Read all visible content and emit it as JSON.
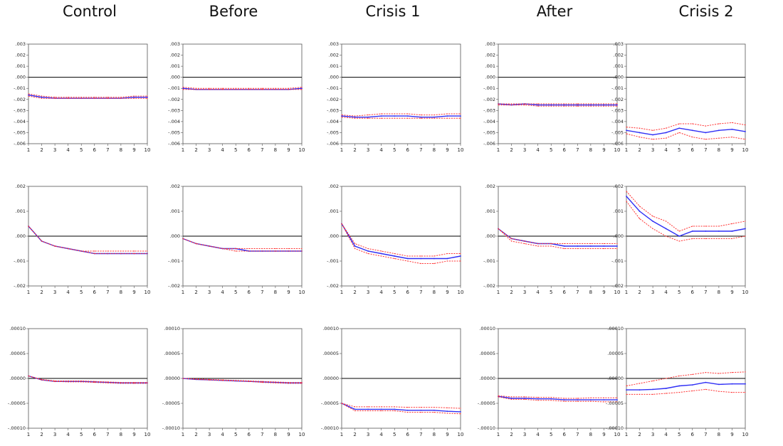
{
  "columns": [
    "Control",
    "Before",
    "Crisis 1",
    "After",
    "Crisis 2"
  ],
  "colors": {
    "response": "#2f2ff5",
    "band": "#ff3030",
    "axis": "#000000",
    "zero": "#000000"
  },
  "chart_data": [
    {
      "type": "line",
      "row": 0,
      "ylim": [
        -0.006,
        0.003
      ],
      "yticks": [
        ".003",
        ".002",
        ".001",
        ".000",
        "-.001",
        "-.002",
        "-.003",
        "-.004",
        "-.005",
        "-.006"
      ],
      "x": [
        1,
        2,
        3,
        4,
        5,
        6,
        7,
        8,
        9,
        10
      ],
      "panels": [
        {
          "col": "Control",
          "series": [
            {
              "role": "response",
              "values": [
                -0.0016,
                -0.0018,
                -0.0019,
                -0.0019,
                -0.0019,
                -0.0019,
                -0.0019,
                -0.0019,
                -0.0018,
                -0.0018
              ]
            },
            {
              "role": "upper",
              "values": [
                -0.0015,
                -0.0017,
                -0.0018,
                -0.0018,
                -0.0018,
                -0.0018,
                -0.0018,
                -0.0018,
                -0.0017,
                -0.0017
              ]
            },
            {
              "role": "lower",
              "values": [
                -0.0017,
                -0.0019,
                -0.0019,
                -0.0019,
                -0.0019,
                -0.0019,
                -0.0019,
                -0.0019,
                -0.0019,
                -0.0019
              ]
            }
          ]
        },
        {
          "col": "Before",
          "series": [
            {
              "role": "response",
              "values": [
                -0.001,
                -0.0011,
                -0.0011,
                -0.0011,
                -0.0011,
                -0.0011,
                -0.0011,
                -0.0011,
                -0.0011,
                -0.001
              ]
            },
            {
              "role": "upper",
              "values": [
                -0.0009,
                -0.001,
                -0.001,
                -0.001,
                -0.001,
                -0.001,
                -0.001,
                -0.001,
                -0.001,
                -0.0009
              ]
            },
            {
              "role": "lower",
              "values": [
                -0.0011,
                -0.0011,
                -0.0011,
                -0.0011,
                -0.0011,
                -0.0011,
                -0.0011,
                -0.0011,
                -0.0011,
                -0.0011
              ]
            }
          ]
        },
        {
          "col": "Crisis 1",
          "series": [
            {
              "role": "response",
              "values": [
                -0.0035,
                -0.0036,
                -0.0036,
                -0.0035,
                -0.0035,
                -0.0035,
                -0.0036,
                -0.0036,
                -0.0035,
                -0.0035
              ]
            },
            {
              "role": "upper",
              "values": [
                -0.0034,
                -0.0035,
                -0.0034,
                -0.0033,
                -0.0033,
                -0.0033,
                -0.0034,
                -0.0034,
                -0.0033,
                -0.0033
              ]
            },
            {
              "role": "lower",
              "values": [
                -0.0036,
                -0.0037,
                -0.0037,
                -0.0037,
                -0.0037,
                -0.0037,
                -0.0037,
                -0.0037,
                -0.0037,
                -0.0037
              ]
            }
          ]
        },
        {
          "col": "After",
          "series": [
            {
              "role": "response",
              "values": [
                -0.0024,
                -0.0025,
                -0.0024,
                -0.0025,
                -0.0025,
                -0.0025,
                -0.0025,
                -0.0025,
                -0.0025,
                -0.0025
              ]
            },
            {
              "role": "upper",
              "values": [
                -0.0024,
                -0.0024,
                -0.0024,
                -0.0024,
                -0.0024,
                -0.0024,
                -0.0024,
                -0.0024,
                -0.0024,
                -0.0024
              ]
            },
            {
              "role": "lower",
              "values": [
                -0.0025,
                -0.0025,
                -0.0025,
                -0.0026,
                -0.0026,
                -0.0026,
                -0.0026,
                -0.0026,
                -0.0026,
                -0.0026
              ]
            }
          ]
        },
        {
          "col": "Crisis 2",
          "series": [
            {
              "role": "response",
              "values": [
                -0.0048,
                -0.005,
                -0.0052,
                -0.005,
                -0.0046,
                -0.0048,
                -0.005,
                -0.0048,
                -0.0047,
                -0.0049
              ]
            },
            {
              "role": "upper",
              "values": [
                -0.0045,
                -0.0046,
                -0.0048,
                -0.0046,
                -0.0042,
                -0.0042,
                -0.0044,
                -0.0042,
                -0.0041,
                -0.0043
              ]
            },
            {
              "role": "lower",
              "values": [
                -0.0051,
                -0.0054,
                -0.0056,
                -0.0055,
                -0.005,
                -0.0054,
                -0.0056,
                -0.0055,
                -0.0054,
                -0.0056
              ]
            }
          ]
        }
      ]
    },
    {
      "type": "line",
      "row": 1,
      "ylim": [
        -0.002,
        0.002
      ],
      "yticks": [
        ".002",
        ".001",
        ".000",
        "-.001",
        "-.002"
      ],
      "x": [
        1,
        2,
        3,
        4,
        5,
        6,
        7,
        8,
        9,
        10
      ],
      "panels": [
        {
          "col": "Control",
          "series": [
            {
              "role": "response",
              "values": [
                0.0004,
                -0.0002,
                -0.0004,
                -0.0005,
                -0.0006,
                -0.0007,
                -0.0007,
                -0.0007,
                -0.0007,
                -0.0007
              ]
            },
            {
              "role": "upper",
              "values": [
                0.0004,
                -0.0002,
                -0.0004,
                -0.0005,
                -0.0006,
                -0.0006,
                -0.0006,
                -0.0006,
                -0.0006,
                -0.0006
              ]
            },
            {
              "role": "lower",
              "values": [
                0.0004,
                -0.0002,
                -0.0004,
                -0.0005,
                -0.0006,
                -0.0007,
                -0.0007,
                -0.0007,
                -0.0007,
                -0.0007
              ]
            }
          ]
        },
        {
          "col": "Before",
          "series": [
            {
              "role": "response",
              "values": [
                -0.0001,
                -0.0003,
                -0.0004,
                -0.0005,
                -0.0005,
                -0.0006,
                -0.0006,
                -0.0006,
                -0.0006,
                -0.0006
              ]
            },
            {
              "role": "upper",
              "values": [
                -0.0001,
                -0.0003,
                -0.0004,
                -0.0005,
                -0.0005,
                -0.0005,
                -0.0005,
                -0.0005,
                -0.0005,
                -0.0005
              ]
            },
            {
              "role": "lower",
              "values": [
                -0.0001,
                -0.0003,
                -0.0004,
                -0.0005,
                -0.0006,
                -0.0006,
                -0.0006,
                -0.0006,
                -0.0006,
                -0.0006
              ]
            }
          ]
        },
        {
          "col": "Crisis 1",
          "series": [
            {
              "role": "response",
              "values": [
                0.0005,
                -0.0004,
                -0.0006,
                -0.0007,
                -0.0008,
                -0.0009,
                -0.0009,
                -0.0009,
                -0.0009,
                -0.0008
              ]
            },
            {
              "role": "upper",
              "values": [
                0.0005,
                -0.0003,
                -0.0005,
                -0.0006,
                -0.0007,
                -0.0008,
                -0.0008,
                -0.0008,
                -0.0007,
                -0.0007
              ]
            },
            {
              "role": "lower",
              "values": [
                0.0005,
                -0.0005,
                -0.0007,
                -0.0008,
                -0.0009,
                -0.001,
                -0.0011,
                -0.0011,
                -0.001,
                -0.001
              ]
            }
          ]
        },
        {
          "col": "After",
          "series": [
            {
              "role": "response",
              "values": [
                0.0003,
                -0.0001,
                -0.0002,
                -0.0003,
                -0.0003,
                -0.0004,
                -0.0004,
                -0.0004,
                -0.0004,
                -0.0004
              ]
            },
            {
              "role": "upper",
              "values": [
                0.0003,
                -0.0001,
                -0.0002,
                -0.0003,
                -0.0003,
                -0.0003,
                -0.0003,
                -0.0003,
                -0.0003,
                -0.0003
              ]
            },
            {
              "role": "lower",
              "values": [
                0.0003,
                -0.0002,
                -0.0003,
                -0.0004,
                -0.0004,
                -0.0005,
                -0.0005,
                -0.0005,
                -0.0005,
                -0.0005
              ]
            }
          ]
        },
        {
          "col": "Crisis 2",
          "series": [
            {
              "role": "response",
              "values": [
                0.0016,
                0.001,
                0.0006,
                0.0003,
                0.0,
                0.0002,
                0.0002,
                0.0002,
                0.0002,
                0.0003
              ]
            },
            {
              "role": "upper",
              "values": [
                0.0018,
                0.0012,
                0.0008,
                0.0006,
                0.0002,
                0.0004,
                0.0004,
                0.0004,
                0.0005,
                0.0006
              ]
            },
            {
              "role": "lower",
              "values": [
                0.0014,
                0.0007,
                0.0003,
                0.0,
                -0.0002,
                -0.0001,
                -0.0001,
                -0.0001,
                -0.0001,
                0.0
              ]
            }
          ]
        }
      ]
    },
    {
      "type": "line",
      "row": 2,
      "ylim": [
        -0.0001,
        0.0001
      ],
      "yticks": [
        ".00010",
        ".00005",
        ".00000",
        "-.00005",
        "-.00010"
      ],
      "x": [
        1,
        2,
        3,
        4,
        5,
        6,
        7,
        8,
        9,
        10
      ],
      "panels": [
        {
          "col": "Control",
          "series": [
            {
              "role": "response",
              "values": [
                5e-06,
                -3e-06,
                -6e-06,
                -6e-06,
                -6e-06,
                -7e-06,
                -8e-06,
                -9e-06,
                -9e-06,
                -9e-06
              ]
            },
            {
              "role": "upper",
              "values": [
                5e-06,
                -2e-06,
                -5e-06,
                -5e-06,
                -5e-06,
                -6e-06,
                -7e-06,
                -8e-06,
                -8e-06,
                -8e-06
              ]
            },
            {
              "role": "lower",
              "values": [
                5e-06,
                -3e-06,
                -6e-06,
                -7e-06,
                -7e-06,
                -8e-06,
                -9e-06,
                -1e-05,
                -1e-05,
                -1e-05
              ]
            }
          ]
        },
        {
          "col": "Before",
          "series": [
            {
              "role": "response",
              "values": [
                0.0,
                -2e-06,
                -3e-06,
                -4e-06,
                -5e-06,
                -6e-06,
                -7e-06,
                -8e-06,
                -9e-06,
                -9e-06
              ]
            },
            {
              "role": "upper",
              "values": [
                0.0,
                -1e-06,
                -2e-06,
                -3e-06,
                -4e-06,
                -5e-06,
                -6e-06,
                -7e-06,
                -8e-06,
                -8e-06
              ]
            },
            {
              "role": "lower",
              "values": [
                0.0,
                -2e-06,
                -3e-06,
                -4e-06,
                -5e-06,
                -6e-06,
                -8e-06,
                -9e-06,
                -1e-05,
                -1e-05
              ]
            }
          ]
        },
        {
          "col": "Crisis 1",
          "series": [
            {
              "role": "response",
              "values": [
                -5e-05,
                -6.2e-05,
                -6.2e-05,
                -6.2e-05,
                -6.2e-05,
                -6.4e-05,
                -6.4e-05,
                -6.4e-05,
                -6.6e-05,
                -6.7e-05
              ]
            },
            {
              "role": "upper",
              "values": [
                -5e-05,
                -5.7e-05,
                -5.7e-05,
                -5.7e-05,
                -5.7e-05,
                -5.8e-05,
                -5.8e-05,
                -5.8e-05,
                -5.9e-05,
                -6e-05
              ]
            },
            {
              "role": "lower",
              "values": [
                -5e-05,
                -6.5e-05,
                -6.5e-05,
                -6.5e-05,
                -6.5e-05,
                -6.8e-05,
                -6.8e-05,
                -6.8e-05,
                -7e-05,
                -7.1e-05
              ]
            }
          ]
        },
        {
          "col": "After",
          "series": [
            {
              "role": "response",
              "values": [
                -3.6e-05,
                -4e-05,
                -4e-05,
                -4.1e-05,
                -4.1e-05,
                -4.3e-05,
                -4.3e-05,
                -4.3e-05,
                -4.3e-05,
                -4.3e-05
              ]
            },
            {
              "role": "upper",
              "values": [
                -3.5e-05,
                -3.7e-05,
                -3.7e-05,
                -3.8e-05,
                -3.8e-05,
                -4e-05,
                -4e-05,
                -3.9e-05,
                -3.9e-05,
                -3.9e-05
              ]
            },
            {
              "role": "lower",
              "values": [
                -3.7e-05,
                -4.2e-05,
                -4.2e-05,
                -4.4e-05,
                -4.4e-05,
                -4.6e-05,
                -4.6e-05,
                -4.6e-05,
                -4.7e-05,
                -4.7e-05
              ]
            }
          ]
        },
        {
          "col": "Crisis 2",
          "series": [
            {
              "role": "response",
              "values": [
                -2.3e-05,
                -2.3e-05,
                -2.2e-05,
                -2e-05,
                -1.5e-05,
                -1.3e-05,
                -8e-06,
                -1.2e-05,
                -1.1e-05,
                -1.1e-05
              ]
            },
            {
              "role": "upper",
              "values": [
                -1.5e-05,
                -1e-05,
                -5e-06,
                0.0,
                5e-06,
                8e-06,
                1.2e-05,
                1e-05,
                1.2e-05,
                1.3e-05
              ]
            },
            {
              "role": "lower",
              "values": [
                -3.2e-05,
                -3.2e-05,
                -3.2e-05,
                -3e-05,
                -2.8e-05,
                -2.5e-05,
                -2.2e-05,
                -2.6e-05,
                -2.8e-05,
                -2.8e-05
              ]
            }
          ]
        }
      ]
    }
  ]
}
